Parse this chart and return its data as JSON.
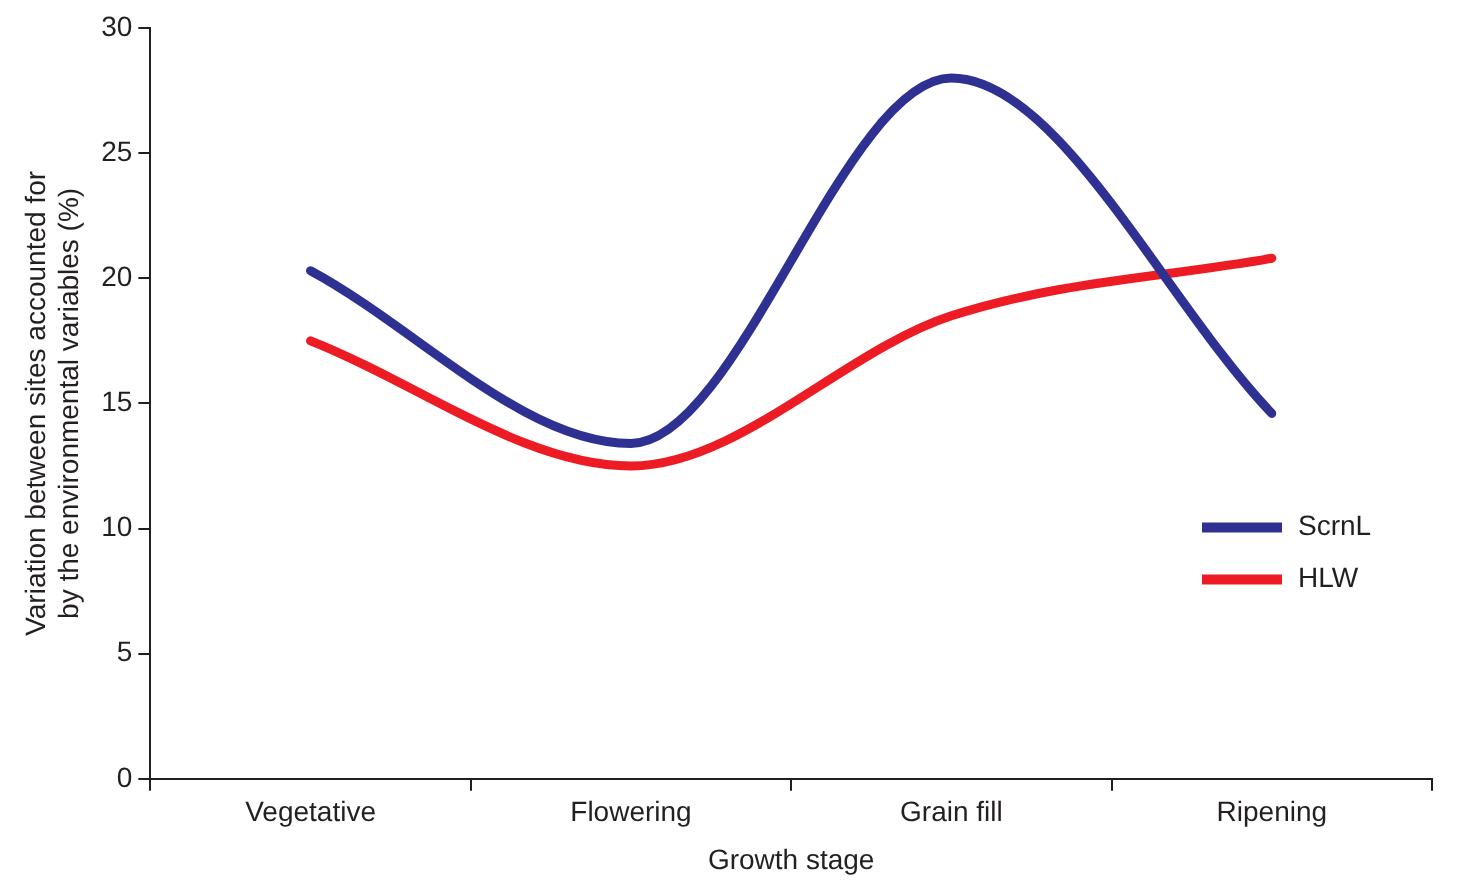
{
  "chart_data": {
    "type": "line",
    "xlabel": "Growth stage",
    "ylabel": "Variation between sites accounted for by the environmental variables (%)",
    "categories": [
      "Vegetative",
      "Flowering",
      "Grain fill",
      "Ripening"
    ],
    "series": [
      {
        "name": "ScrnL",
        "color": "#2e3192",
        "values": [
          20.3,
          13.4,
          28,
          14.6
        ]
      },
      {
        "name": "HLW",
        "color": "#ed1c24",
        "values": [
          17.5,
          12.5,
          18.5,
          20.8
        ]
      }
    ],
    "ylim": [
      0,
      30
    ],
    "yticks": [
      0,
      5,
      10,
      15,
      20,
      25,
      30
    ],
    "grid": false,
    "legend": "right",
    "marker": "none",
    "line_style": "solid"
  }
}
